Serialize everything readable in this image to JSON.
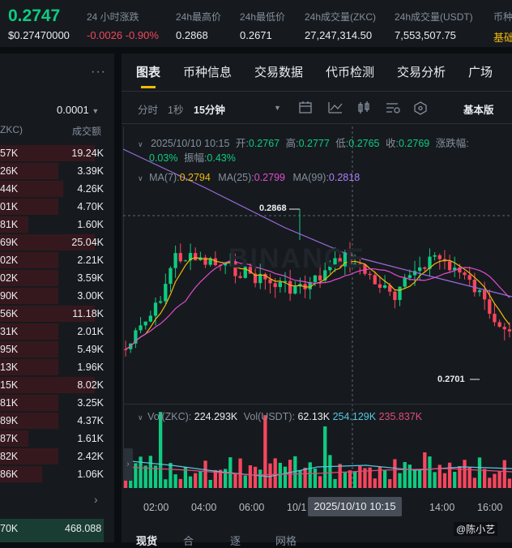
{
  "ticker": {
    "last_price": "0.2747",
    "usd_price": "$0.27470000",
    "change_label": "24 小时涨跌",
    "change_value": "-0.0026 -0.90%",
    "high_label": "24h最高价",
    "high_value": "0.2868",
    "low_label": "24h最低价",
    "low_value": "0.2671",
    "vol_base_label": "24h成交量(ZKC)",
    "vol_base_value": "27,247,314.50",
    "vol_quote_label": "24h成交量(USDT)",
    "vol_quote_value": "7,553,507.75",
    "extra_label": "币种",
    "extra_value": "基础"
  },
  "orderbook": {
    "menu_icon": "more-dots-icon",
    "tick_size": "0.0001",
    "col_qty": "ZKC)",
    "col_total": "成交额",
    "rows": [
      {
        "qty": "57K",
        "total": "19.24K",
        "depth": 0.9
      },
      {
        "qty": "26K",
        "total": "3.39K",
        "depth": 0.55
      },
      {
        "qty": "44K",
        "total": "4.26K",
        "depth": 0.6
      },
      {
        "qty": "01K",
        "total": "4.70K",
        "depth": 0.55
      },
      {
        "qty": "81K",
        "total": "1.60K",
        "depth": 0.27
      },
      {
        "qty": "69K",
        "total": "25.04K",
        "depth": 0.9
      },
      {
        "qty": "02K",
        "total": "2.21K",
        "depth": 0.55
      },
      {
        "qty": "02K",
        "total": "3.59K",
        "depth": 0.55
      },
      {
        "qty": "90K",
        "total": "3.00K",
        "depth": 0.55
      },
      {
        "qty": "56K",
        "total": "11.18K",
        "depth": 0.9
      },
      {
        "qty": "31K",
        "total": "2.01K",
        "depth": 0.55
      },
      {
        "qty": "95K",
        "total": "5.49K",
        "depth": 0.55
      },
      {
        "qty": "13K",
        "total": "1.96K",
        "depth": 0.55
      },
      {
        "qty": "15K",
        "total": "8.02K",
        "depth": 0.9
      },
      {
        "qty": "81K",
        "total": "3.25K",
        "depth": 0.55
      },
      {
        "qty": "89K",
        "total": "4.37K",
        "depth": 0.55
      },
      {
        "qty": "87K",
        "total": "1.61K",
        "depth": 0.27
      },
      {
        "qty": "82K",
        "total": "2.42K",
        "depth": 0.55
      },
      {
        "qty": "86K",
        "total": "1.06K",
        "depth": 0.4
      }
    ],
    "more_arrow": "chevron-right-icon",
    "bottom_qty": "70K",
    "bottom_total": "468.088"
  },
  "tabs": [
    "图表",
    "币种信息",
    "交易数据",
    "代币检测",
    "交易分析",
    "广场"
  ],
  "toolbar": {
    "time_label": "分时",
    "one_sec": "1秒",
    "interval": "15分钟",
    "view_mode": "基本版"
  },
  "chart": {
    "ohlc": {
      "date": "2025/10/10 10:15",
      "open_label": "开:",
      "open": "0.2767",
      "high_label": "高:",
      "high": "0.2777",
      "low_label": "低:",
      "low": "0.2765",
      "close_label": "收:",
      "close": "0.2769",
      "change_label": "涨跌幅:",
      "change": "0.03%",
      "amplitude_label": "振幅:",
      "amplitude": "0.43%"
    },
    "ma": {
      "ma7_label": "MA(7):",
      "ma7": "0.2794",
      "ma25_label": "MA(25):",
      "ma25": "0.2799",
      "ma99_label": "MA(99):",
      "ma99": "0.2818"
    },
    "high_marker": "0.2868",
    "low_marker": "0.2701",
    "volume": {
      "vol_base_label": "Vol(ZKC):",
      "vol_base": "224.293K",
      "vol_quote_label": "Vol(USDT):",
      "vol_quote": "62.13K",
      "ma1": "254.129K",
      "ma2": "235.837K"
    },
    "time_axis": [
      "02:00",
      "04:00",
      "06:00",
      "10/1",
      "14:00",
      "16:00"
    ],
    "crosshair_time": "2025/10/10 10:15",
    "watermark": "BINANCE",
    "colors": {
      "up": "#0ecb81",
      "down": "#f6465d",
      "ma7": "#f0b90b",
      "ma25": "#e04ccf",
      "ma99": "#9c6ade"
    }
  },
  "chart_data": {
    "type": "candlestick",
    "interval": "15分钟",
    "ma7_last": 0.2794,
    "ma25_last": 0.2799,
    "ma99_last": 0.2818,
    "period_high": 0.2868,
    "period_low": 0.2701
  },
  "bottom_tabs": [
    "现货",
    "合",
    "逐",
    "网格"
  ],
  "credit": "@陈小艺"
}
